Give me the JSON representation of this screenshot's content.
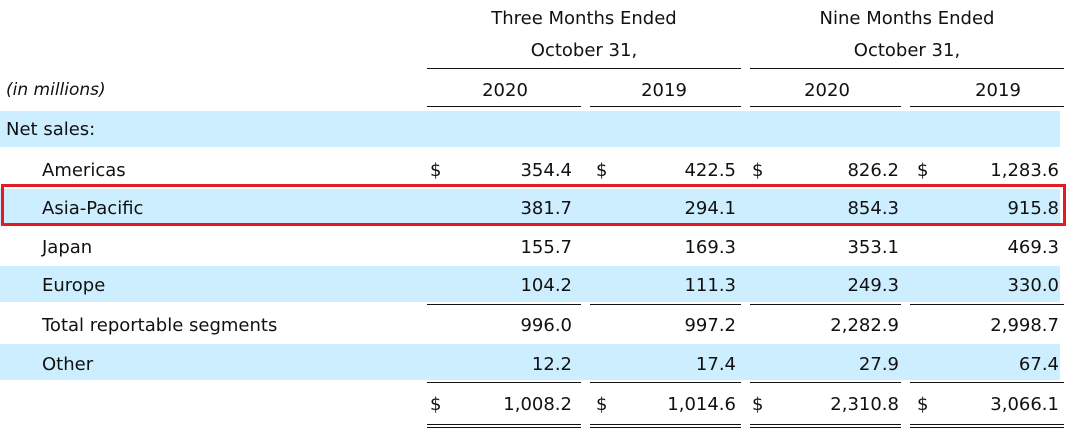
{
  "header": {
    "three_months_line1": "Three Months Ended",
    "three_months_line2": "October 31,",
    "nine_months_line1": "Nine Months Ended",
    "nine_months_line2": "October 31,",
    "years": [
      "2020",
      "2019",
      "2020",
      "2019"
    ],
    "units": "(in millions)"
  },
  "section_label": "Net sales:",
  "currency_symbol": "$",
  "rows": [
    {
      "label": "Americas",
      "values": [
        "354.4",
        "422.5",
        "826.2",
        "1,283.6"
      ]
    },
    {
      "label": "Asia-Pacific",
      "values": [
        "381.7",
        "294.1",
        "854.3",
        "915.8"
      ]
    },
    {
      "label": "Japan",
      "values": [
        "155.7",
        "169.3",
        "353.1",
        "469.3"
      ]
    },
    {
      "label": "Europe",
      "values": [
        "104.2",
        "111.3",
        "249.3",
        "330.0"
      ]
    },
    {
      "label": "Total reportable segments",
      "values": [
        "996.0",
        "997.2",
        "2,282.9",
        "2,998.7"
      ]
    },
    {
      "label": "Other",
      "values": [
        "12.2",
        "17.4",
        "27.9",
        "67.4"
      ]
    },
    {
      "label": "",
      "values": [
        "1,008.2",
        "1,014.6",
        "2,310.8",
        "3,066.1"
      ]
    }
  ],
  "highlight_color": "#e31b23",
  "band_color": "#cceeff"
}
